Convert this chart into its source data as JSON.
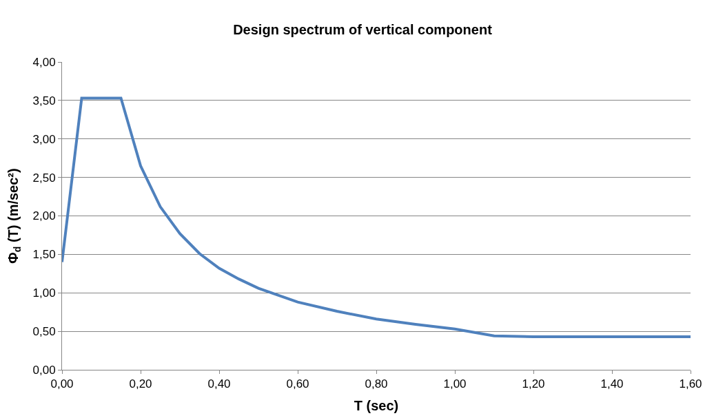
{
  "chart_data": {
    "type": "line",
    "title": "Design spectrum of vertical component",
    "xlabel": "T (sec)",
    "ylabel": "Φ$_{d}$ (T) (m/sec²)",
    "x": [
      0,
      0.05,
      0.15,
      0.2,
      0.25,
      0.3,
      0.35,
      0.4,
      0.45,
      0.5,
      0.6,
      0.7,
      0.8,
      0.9,
      1.0,
      1.1,
      1.2,
      1.6
    ],
    "series": [
      {
        "color": "#4f81bd",
        "values": [
          1.4,
          3.53,
          3.53,
          2.65,
          2.12,
          1.77,
          1.51,
          1.32,
          1.18,
          1.06,
          0.88,
          0.76,
          0.66,
          0.59,
          0.53,
          0.44,
          0.43,
          0.43
        ]
      }
    ],
    "xlim": [
      0,
      1.6
    ],
    "ylim": [
      0,
      4
    ],
    "xticks": [
      {
        "value": 0,
        "label": "0,00"
      },
      {
        "value": 0.2,
        "label": "0,20"
      },
      {
        "value": 0.4,
        "label": "0,40"
      },
      {
        "value": 0.6,
        "label": "0,60"
      },
      {
        "value": 0.8,
        "label": "0,80"
      },
      {
        "value": 1.0,
        "label": "1,00"
      },
      {
        "value": 1.2,
        "label": "1,20"
      },
      {
        "value": 1.4,
        "label": "1,40"
      },
      {
        "value": 1.6,
        "label": "1,60"
      }
    ],
    "yticks": [
      {
        "value": 0,
        "label": "0,00"
      },
      {
        "value": 0.5,
        "label": "0,50"
      },
      {
        "value": 1.0,
        "label": "1,00"
      },
      {
        "value": 1.5,
        "label": "1,50"
      },
      {
        "value": 2.0,
        "label": "2,00"
      },
      {
        "value": 2.5,
        "label": "2,50"
      },
      {
        "value": 3.0,
        "label": "3,00"
      },
      {
        "value": 3.5,
        "label": "3,50"
      },
      {
        "value": 4.0,
        "label": "4,00"
      }
    ],
    "grid": "y",
    "marker": "none",
    "line_style": "solid"
  }
}
